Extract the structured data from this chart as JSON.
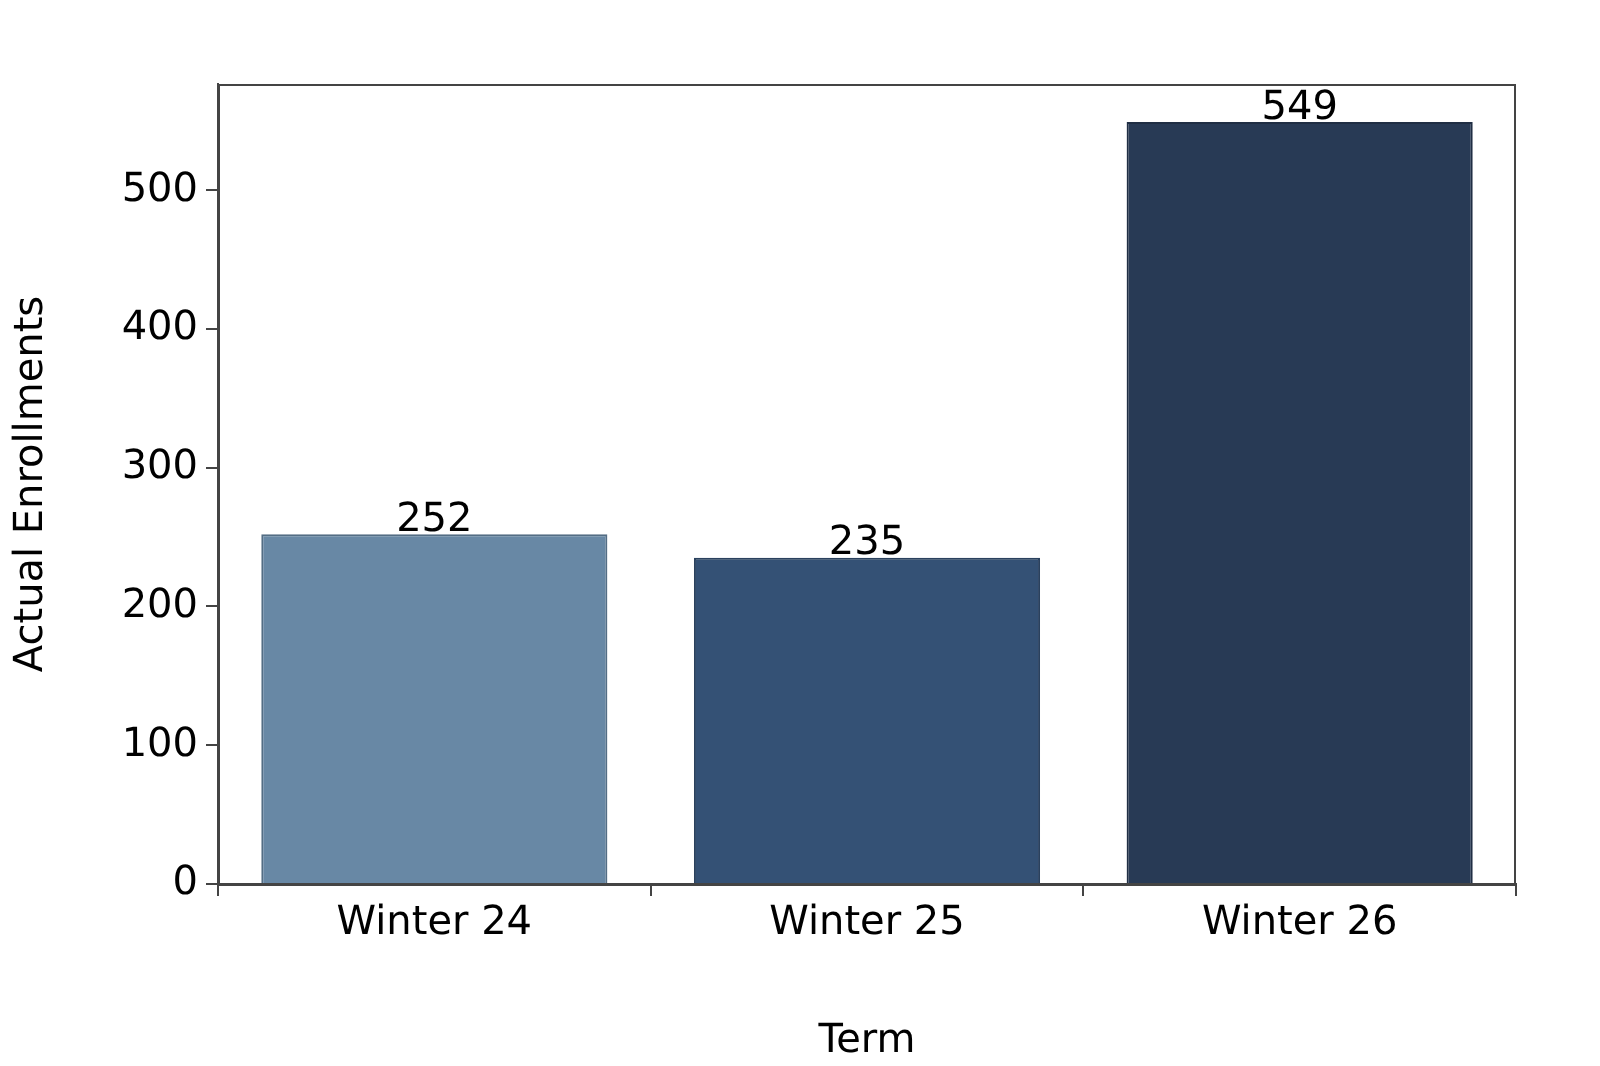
{
  "chart_data": {
    "type": "bar",
    "xlabel": "Term",
    "ylabel": "Actual Enrollments",
    "categories": [
      "Winter 24",
      "Winter 25",
      "Winter 26"
    ],
    "values": [
      252,
      235,
      549
    ],
    "colors": [
      "#6888a5",
      "#345175",
      "#283a55"
    ],
    "ylim": [
      0,
      576.45
    ],
    "yticks": [
      0,
      100,
      200,
      300,
      400,
      500
    ],
    "grid": false,
    "legend": false,
    "data_labels": true
  }
}
